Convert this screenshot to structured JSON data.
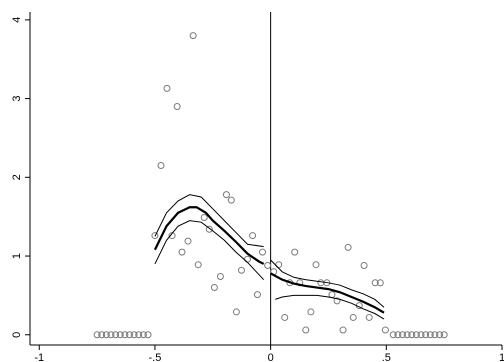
{
  "chart_data": {
    "type": "scatter",
    "xlim": [
      -1.04,
      1.0
    ],
    "ylim": [
      -0.13,
      4.1
    ],
    "xticks": [
      {
        "value": -1,
        "label": "-1"
      },
      {
        "value": -0.5,
        "label": "-.5"
      },
      0,
      {
        "value": 0.5,
        "label": ".5"
      },
      1
    ],
    "yticks": [
      0,
      1,
      2,
      3,
      4
    ],
    "xline": 0,
    "series": [
      {
        "style": "markers",
        "color": "#7a7a7a",
        "x": [
          -0.75,
          -0.73,
          -0.71,
          -0.69,
          -0.67,
          -0.65,
          -0.63,
          -0.61,
          -0.59,
          -0.57,
          -0.55,
          -0.53,
          -0.5,
          -0.474,
          -0.448,
          -0.426,
          -0.404,
          -0.383,
          -0.357,
          -0.335,
          -0.313,
          -0.287,
          -0.265,
          -0.243,
          -0.217,
          -0.191,
          -0.17,
          -0.148,
          -0.126,
          -0.1,
          -0.078,
          -0.057,
          -0.035,
          -0.013,
          0.013,
          0.035,
          0.061,
          0.083,
          0.104,
          0.126,
          0.152,
          0.174,
          0.196,
          0.217,
          0.243,
          0.265,
          0.287,
          0.313,
          0.335,
          0.357,
          0.383,
          0.404,
          0.426,
          0.452,
          0.474,
          0.496,
          0.53,
          0.55,
          0.57,
          0.59,
          0.61,
          0.63,
          0.65,
          0.67,
          0.69,
          0.71,
          0.73,
          0.75
        ],
        "values": [
          0,
          0,
          0,
          0,
          0,
          0,
          0,
          0,
          0,
          0,
          0,
          0,
          1.26,
          2.15,
          3.13,
          1.26,
          2.9,
          1.05,
          1.19,
          3.8,
          0.89,
          1.49,
          1.34,
          0.6,
          0.74,
          1.78,
          1.71,
          0.29,
          0.82,
          0.96,
          1.26,
          0.51,
          1.05,
          0.88,
          0.8,
          0.89,
          0.22,
          0.66,
          1.05,
          0.66,
          0.06,
          0.29,
          0.89,
          0.66,
          0.66,
          0.51,
          0.43,
          0.06,
          1.11,
          0.22,
          0.37,
          0.88,
          0.22,
          0.66,
          0.66,
          0.06,
          0,
          0,
          0,
          0,
          0,
          0,
          0,
          0,
          0,
          0,
          0,
          0
        ]
      },
      {
        "style": "line",
        "color": "#000000",
        "width": 2.2,
        "x": [
          -0.5,
          -0.45,
          -0.4,
          -0.35,
          -0.32,
          -0.28,
          -0.25,
          -0.2,
          -0.15,
          -0.1,
          -0.05,
          -0.03
        ],
        "values": [
          1.08,
          1.38,
          1.55,
          1.62,
          1.62,
          1.55,
          1.45,
          1.32,
          1.18,
          1.03,
          0.93,
          0.9
        ]
      },
      {
        "style": "line",
        "color": "#000000",
        "width": 1,
        "x": [
          -0.5,
          -0.45,
          -0.4,
          -0.35,
          -0.3,
          -0.25,
          -0.2,
          -0.15,
          -0.1,
          -0.03
        ],
        "values": [
          1.25,
          1.55,
          1.7,
          1.78,
          1.75,
          1.6,
          1.45,
          1.3,
          1.15,
          1.12
        ]
      },
      {
        "style": "line",
        "color": "#000000",
        "width": 1,
        "x": [
          -0.5,
          -0.45,
          -0.4,
          -0.35,
          -0.3,
          -0.25,
          -0.2,
          -0.15,
          -0.1,
          -0.03
        ],
        "values": [
          0.9,
          1.2,
          1.38,
          1.45,
          1.43,
          1.32,
          1.2,
          1.05,
          0.92,
          0.7
        ]
      },
      {
        "style": "line",
        "color": "#000000",
        "width": 2.2,
        "x": [
          0.0,
          0.05,
          0.1,
          0.15,
          0.2,
          0.25,
          0.3,
          0.35,
          0.4,
          0.45,
          0.49
        ],
        "values": [
          0.78,
          0.7,
          0.65,
          0.62,
          0.6,
          0.58,
          0.54,
          0.48,
          0.42,
          0.35,
          0.28
        ]
      },
      {
        "style": "line",
        "color": "#000000",
        "width": 1,
        "x": [
          0.0,
          0.05,
          0.1,
          0.15,
          0.2,
          0.25,
          0.3,
          0.35,
          0.4,
          0.45,
          0.49
        ],
        "values": [
          0.95,
          0.8,
          0.73,
          0.7,
          0.68,
          0.66,
          0.63,
          0.57,
          0.52,
          0.45,
          0.35
        ]
      },
      {
        "style": "line",
        "color": "#000000",
        "width": 1,
        "x": [
          0.02,
          0.05,
          0.1,
          0.15,
          0.2,
          0.25,
          0.3,
          0.35,
          0.4,
          0.45,
          0.49
        ],
        "values": [
          0.45,
          0.48,
          0.5,
          0.5,
          0.5,
          0.48,
          0.45,
          0.4,
          0.33,
          0.27,
          0.2
        ]
      }
    ]
  }
}
